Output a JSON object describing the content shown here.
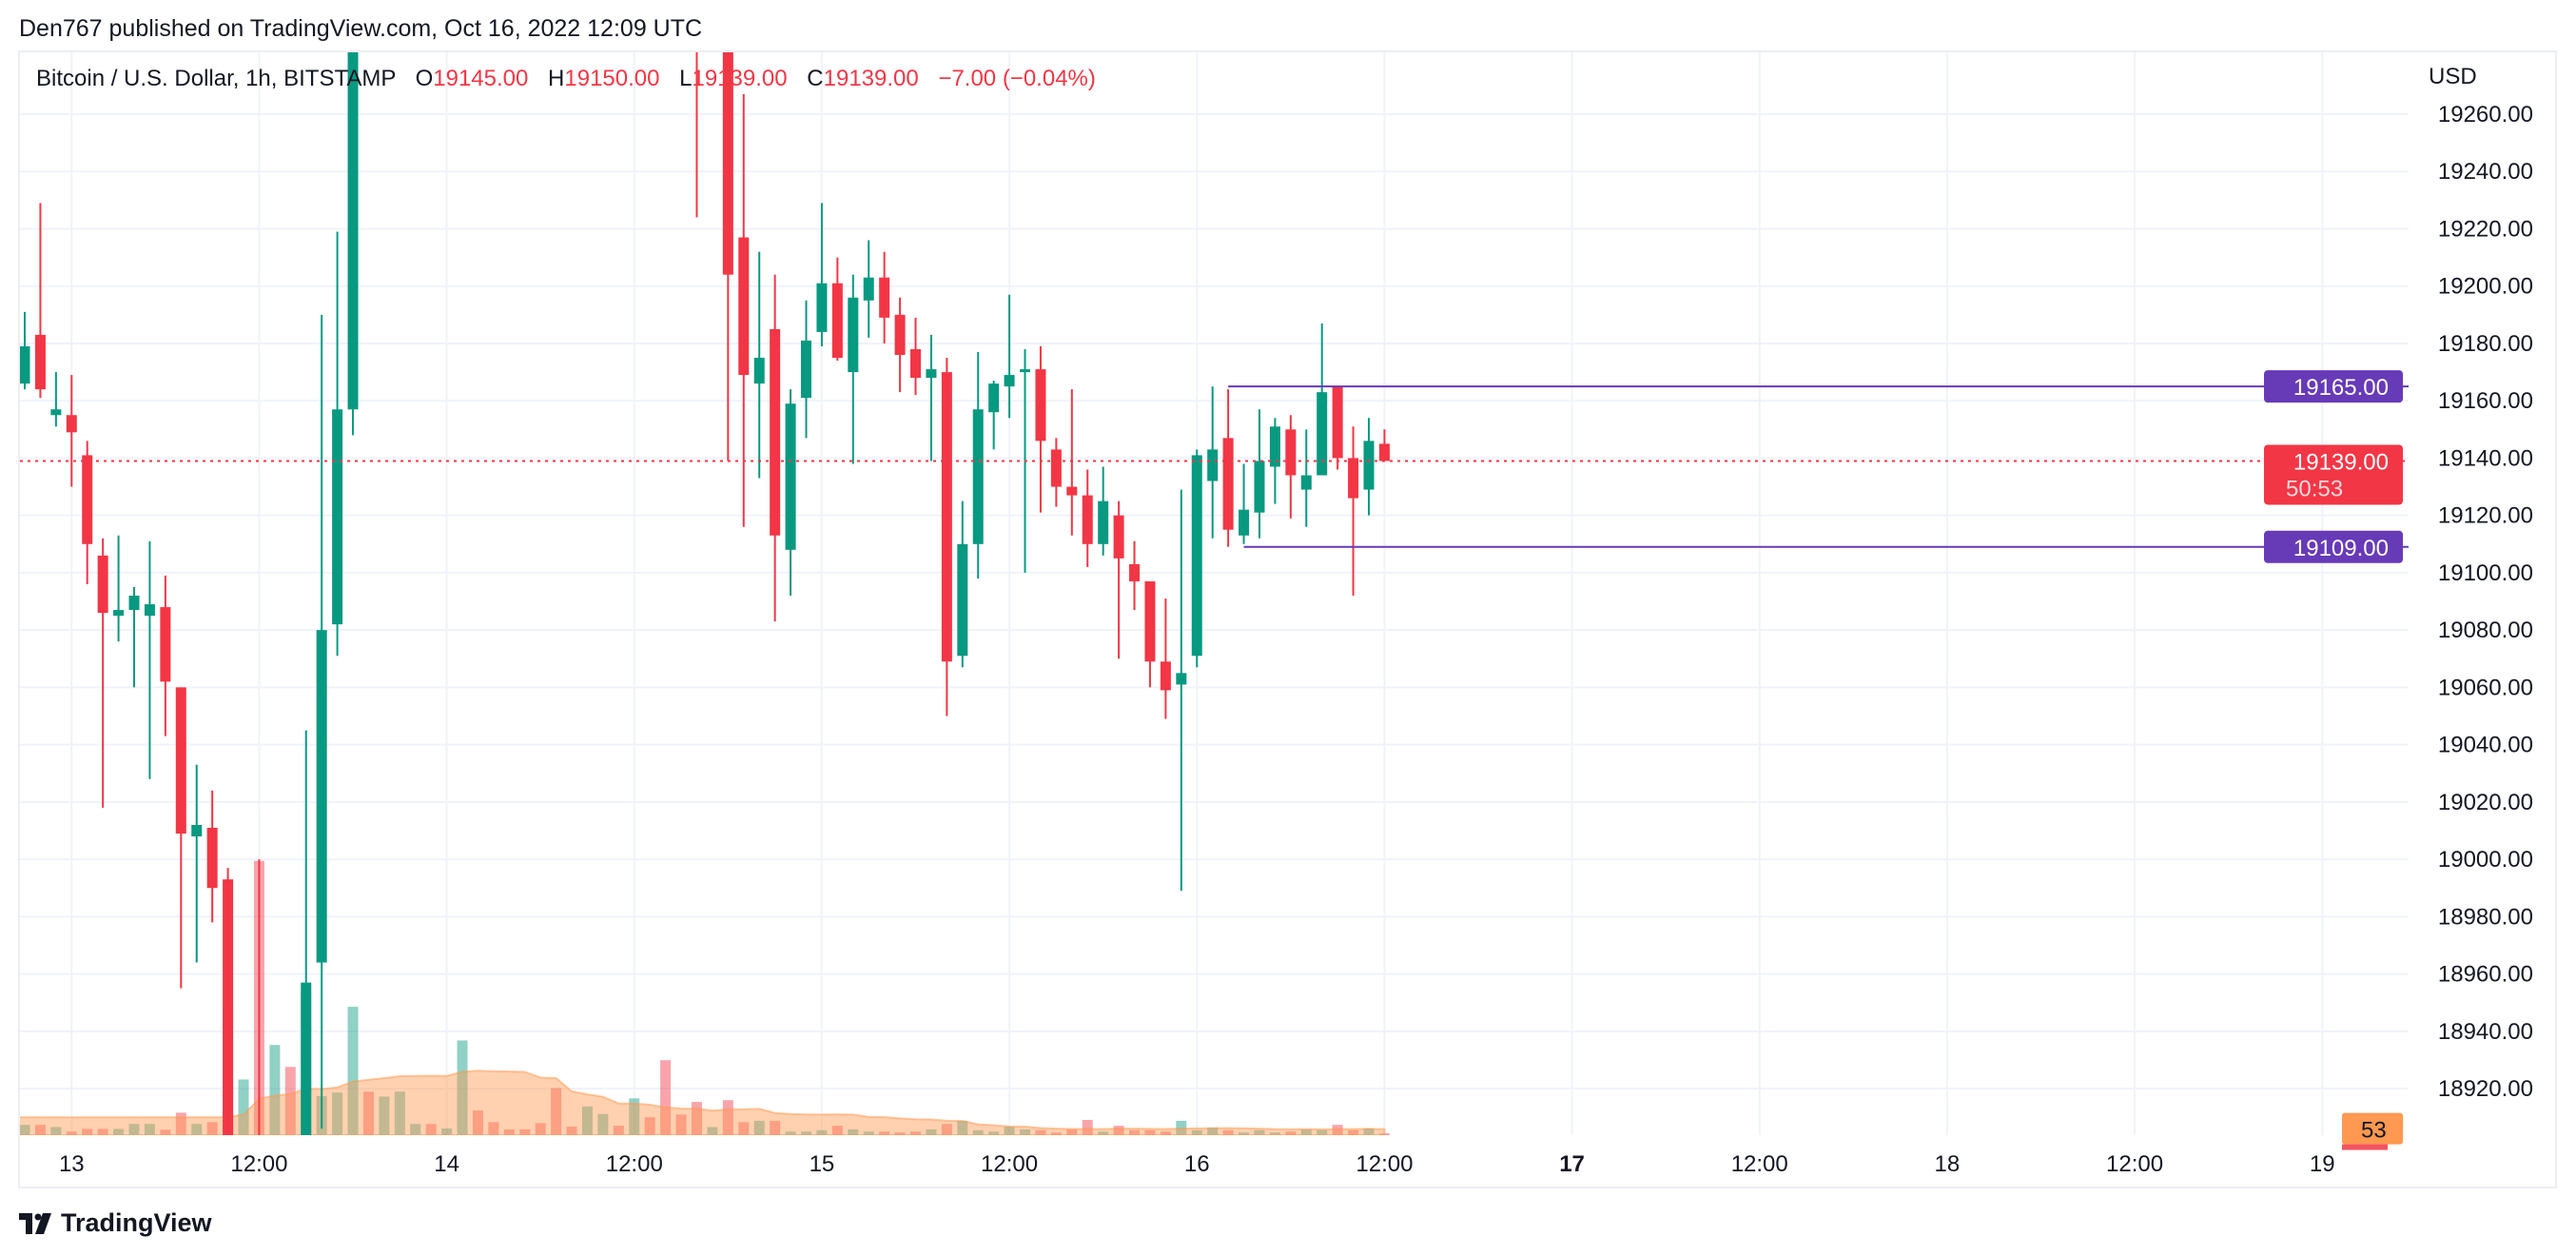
{
  "header": {
    "published": "Den767 published on TradingView.com, Oct 16, 2022 12:09 UTC"
  },
  "legend": {
    "symbol": "Bitcoin / U.S. Dollar, 1h, BITSTAMP",
    "o_label": "O",
    "o_value": "19145.00",
    "h_label": "H",
    "h_value": "19150.00",
    "l_label": "L",
    "l_value": "19139.00",
    "c_label": "C",
    "c_value": "19139.00",
    "change": "−7.00 (−0.04%)"
  },
  "price_axis": {
    "currency": "USD",
    "ticks": [
      "19260.00",
      "19240.00",
      "19220.00",
      "19200.00",
      "19180.00",
      "19160.00",
      "19140.00",
      "19120.00",
      "19100.00",
      "19080.00",
      "19060.00",
      "19040.00",
      "19020.00",
      "19000.00",
      "18980.00",
      "18960.00",
      "18940.00",
      "18920.00"
    ],
    "current_price": "19139.00",
    "countdown": "50:53",
    "volume_ma_label": "53",
    "levels": [
      "19165.00",
      "19109.00"
    ]
  },
  "time_axis": {
    "labels": [
      {
        "text": "13",
        "bold": false
      },
      {
        "text": "12:00",
        "bold": false
      },
      {
        "text": "14",
        "bold": false
      },
      {
        "text": "12:00",
        "bold": false
      },
      {
        "text": "15",
        "bold": false
      },
      {
        "text": "12:00",
        "bold": false
      },
      {
        "text": "16",
        "bold": false
      },
      {
        "text": "12:00",
        "bold": false
      },
      {
        "text": "17",
        "bold": true
      },
      {
        "text": "12:00",
        "bold": false
      },
      {
        "text": "18",
        "bold": false
      },
      {
        "text": "12:00",
        "bold": false
      },
      {
        "text": "19",
        "bold": false
      }
    ]
  },
  "footer": {
    "brand": "TradingView"
  },
  "colors": {
    "up": "#089981",
    "down": "#f23645",
    "level_line": "#673ab7",
    "volume_ma": "#ff9850",
    "grid": "#f0f3fa"
  },
  "chart_data": {
    "type": "candlestick",
    "title": "Bitcoin / U.S. Dollar, 1h, BITSTAMP",
    "ylabel": "USD",
    "ylim": [
      18904,
      19282
    ],
    "grid": true,
    "horizontal_levels": [
      {
        "price": 19165,
        "from": "2022-10-16 02:00"
      },
      {
        "price": 19109,
        "from": "2022-10-16 03:00"
      }
    ],
    "last_price_line": 19139,
    "columns": [
      "time",
      "open",
      "high",
      "low",
      "close",
      "volume",
      "direction"
    ],
    "candles": [
      [
        "2022-10-12 21:00",
        19166,
        19191,
        19164,
        19179,
        23,
        "up"
      ],
      [
        "2022-10-12 22:00",
        19183,
        19229,
        19161,
        19164,
        23,
        "down"
      ],
      [
        "2022-10-12 23:00",
        19155,
        19170,
        19151,
        19157,
        18,
        "up"
      ],
      [
        "2022-10-13 00:00",
        19155,
        19169,
        19130,
        19149,
        8,
        "down"
      ],
      [
        "2022-10-13 01:00",
        19141,
        19146,
        19096,
        19110,
        14,
        "down"
      ],
      [
        "2022-10-13 02:00",
        19106,
        19112,
        19018,
        19086,
        14,
        "down"
      ],
      [
        "2022-10-13 03:00",
        19085,
        19113,
        19076,
        19087,
        14,
        "up"
      ],
      [
        "2022-10-13 04:00",
        19087,
        19095,
        19060,
        19092,
        25,
        "up"
      ],
      [
        "2022-10-13 05:00",
        19085,
        19111,
        19028,
        19089,
        25,
        "up"
      ],
      [
        "2022-10-13 06:00",
        19088,
        19099,
        19043,
        19062,
        12,
        "down"
      ],
      [
        "2022-10-13 07:00",
        19060,
        19060,
        18955,
        19009,
        50,
        "down"
      ],
      [
        "2022-10-13 08:00",
        19008,
        19033,
        18964,
        19012,
        25,
        "up"
      ],
      [
        "2022-10-13 09:00",
        19011,
        19024,
        18978,
        18990,
        29,
        "down"
      ],
      [
        "2022-10-13 10:00",
        18993,
        18997,
        18860,
        18880,
        283,
        "down"
      ],
      [
        "2022-10-13 11:00",
        null,
        null,
        null,
        null,
        124,
        "up"
      ],
      [
        "2022-10-13 12:00",
        18890,
        19000,
        18850,
        18860,
        611,
        "down"
      ],
      [
        "2022-10-13 13:00",
        null,
        null,
        null,
        null,
        201,
        "up"
      ],
      [
        "2022-10-13 14:00",
        null,
        null,
        null,
        null,
        152,
        "down"
      ],
      [
        "2022-10-13 15:00",
        18870,
        19045,
        18860,
        18957,
        316,
        "up"
      ],
      [
        "2022-10-13 16:00",
        18964,
        19190,
        18906,
        19080,
        87,
        "up"
      ],
      [
        "2022-10-13 17:00",
        19082,
        19219,
        19071,
        19157,
        95,
        "up"
      ],
      [
        "2022-10-13 18:00",
        19157,
        19310,
        19148,
        19300,
        286,
        "up"
      ],
      [
        "2022-10-13 19:00",
        null,
        null,
        null,
        null,
        97,
        "down"
      ],
      [
        "2022-10-13 20:00",
        null,
        null,
        null,
        null,
        86,
        "up"
      ],
      [
        "2022-10-13 21:00",
        null,
        null,
        null,
        null,
        97,
        "up"
      ],
      [
        "2022-10-13 22:00",
        null,
        null,
        null,
        null,
        25,
        "up"
      ],
      [
        "2022-10-13 23:00",
        null,
        null,
        null,
        null,
        25,
        "down"
      ],
      [
        "2022-10-14 00:00",
        null,
        null,
        null,
        null,
        15,
        "up"
      ],
      [
        "2022-10-14 01:00",
        null,
        null,
        null,
        null,
        211,
        "up"
      ],
      [
        "2022-10-14 02:00",
        null,
        null,
        null,
        null,
        55,
        "down"
      ],
      [
        "2022-10-14 03:00",
        null,
        null,
        null,
        null,
        29,
        "down"
      ],
      [
        "2022-10-14 04:00",
        null,
        null,
        null,
        null,
        13,
        "down"
      ],
      [
        "2022-10-14 05:00",
        null,
        null,
        null,
        null,
        13,
        "down"
      ],
      [
        "2022-10-14 06:00",
        null,
        null,
        null,
        null,
        27,
        "down"
      ],
      [
        "2022-10-14 07:00",
        null,
        null,
        null,
        null,
        105,
        "down"
      ],
      [
        "2022-10-14 08:00",
        null,
        null,
        null,
        null,
        19,
        "down"
      ],
      [
        "2022-10-14 09:00",
        null,
        null,
        null,
        null,
        64,
        "up"
      ],
      [
        "2022-10-14 10:00",
        null,
        null,
        null,
        null,
        47,
        "up"
      ],
      [
        "2022-10-14 11:00",
        null,
        null,
        null,
        null,
        21,
        "down"
      ],
      [
        "2022-10-14 12:00",
        null,
        null,
        null,
        null,
        82,
        "up"
      ],
      [
        "2022-10-14 13:00",
        null,
        null,
        null,
        null,
        40,
        "down"
      ],
      [
        "2022-10-14 14:00",
        null,
        null,
        null,
        null,
        167,
        "down"
      ],
      [
        "2022-10-14 15:00",
        null,
        null,
        null,
        null,
        46,
        "down"
      ],
      [
        "2022-10-14 16:00",
        19330,
        19350,
        19224,
        19300,
        74,
        "down"
      ],
      [
        "2022-10-14 17:00",
        null,
        null,
        null,
        null,
        18,
        "up"
      ],
      [
        "2022-10-14 18:00",
        19290,
        19300,
        19139,
        19204,
        78,
        "down"
      ],
      [
        "2022-10-14 19:00",
        19217,
        19267,
        19116,
        19169,
        29,
        "down"
      ],
      [
        "2022-10-14 20:00",
        19166,
        19212,
        19133,
        19175,
        32,
        "up"
      ],
      [
        "2022-10-14 21:00",
        19185,
        19204,
        19083,
        19113,
        32,
        "down"
      ],
      [
        "2022-10-14 22:00",
        19108,
        19164,
        19092,
        19159,
        8,
        "up"
      ],
      [
        "2022-10-14 23:00",
        19161,
        19195,
        19147,
        19181,
        8,
        "up"
      ],
      [
        "2022-10-15 00:00",
        19184,
        19229,
        19179,
        19201,
        11,
        "up"
      ],
      [
        "2022-10-15 01:00",
        19201,
        19210,
        19174,
        19175,
        21,
        "down"
      ],
      [
        "2022-10-15 02:00",
        19170,
        19204,
        19138,
        19196,
        13,
        "up"
      ],
      [
        "2022-10-15 03:00",
        19195,
        19216,
        19182,
        19203,
        8,
        "up"
      ],
      [
        "2022-10-15 04:00",
        19203,
        19212,
        19180,
        19189,
        8,
        "down"
      ],
      [
        "2022-10-15 05:00",
        19190,
        19196,
        19163,
        19176,
        6,
        "down"
      ],
      [
        "2022-10-15 06:00",
        19178,
        19189,
        19162,
        19168,
        8,
        "down"
      ],
      [
        "2022-10-15 07:00",
        19168,
        19183,
        19139,
        19171,
        13,
        "up"
      ],
      [
        "2022-10-15 08:00",
        19170,
        19175,
        19050,
        19069,
        25,
        "down"
      ],
      [
        "2022-10-15 09:00",
        19071,
        19125,
        19067,
        19110,
        32,
        "up"
      ],
      [
        "2022-10-15 10:00",
        19110,
        19177,
        19098,
        19157,
        11,
        "up"
      ],
      [
        "2022-10-15 11:00",
        19156,
        19167,
        19143,
        19166,
        8,
        "up"
      ],
      [
        "2022-10-15 12:00",
        19165,
        19197,
        19154,
        19169,
        19,
        "up"
      ],
      [
        "2022-10-15 13:00",
        19170,
        19178,
        19100,
        19171,
        13,
        "up"
      ],
      [
        "2022-10-15 14:00",
        19171,
        19179,
        19121,
        19146,
        11,
        "down"
      ],
      [
        "2022-10-15 15:00",
        19143,
        19147,
        19123,
        19130,
        6,
        "down"
      ],
      [
        "2022-10-15 16:00",
        19130,
        19164,
        19113,
        19127,
        13,
        "down"
      ],
      [
        "2022-10-15 17:00",
        19127,
        19136,
        19102,
        19110,
        34,
        "down"
      ],
      [
        "2022-10-15 18:00",
        19110,
        19137,
        19106,
        19125,
        8,
        "up"
      ],
      [
        "2022-10-15 19:00",
        19120,
        19125,
        19070,
        19105,
        21,
        "down"
      ],
      [
        "2022-10-15 20:00",
        19103,
        19111,
        19087,
        19097,
        11,
        "down"
      ],
      [
        "2022-10-15 21:00",
        19097,
        19097,
        19060,
        19069,
        11,
        "down"
      ],
      [
        "2022-10-15 22:00",
        19069,
        19091,
        19049,
        19059,
        8,
        "down"
      ],
      [
        "2022-10-15 23:00",
        19061,
        19129,
        18989,
        19065,
        32,
        "up"
      ],
      [
        "2022-10-16 00:00",
        19071,
        19143,
        19067,
        19141,
        11,
        "up"
      ],
      [
        "2022-10-16 01:00",
        19132,
        19165,
        19112,
        19143,
        17,
        "up"
      ],
      [
        "2022-10-16 02:00",
        19147,
        19164,
        19109,
        19115,
        11,
        "down"
      ],
      [
        "2022-10-16 03:00",
        19113,
        19138,
        19110,
        19122,
        6,
        "up"
      ],
      [
        "2022-10-16 04:00",
        19121,
        19157,
        19112,
        19139,
        11,
        "up"
      ],
      [
        "2022-10-16 05:00",
        19137,
        19154,
        19124,
        19151,
        6,
        "up"
      ],
      [
        "2022-10-16 06:00",
        19150,
        19155,
        19119,
        19134,
        8,
        "down"
      ],
      [
        "2022-10-16 07:00",
        19129,
        19150,
        19116,
        19134,
        13,
        "up"
      ],
      [
        "2022-10-16 08:00",
        19134,
        19187,
        19134,
        19163,
        11,
        "up"
      ],
      [
        "2022-10-16 09:00",
        19165,
        19165,
        19136,
        19140,
        23,
        "down"
      ],
      [
        "2022-10-16 10:00",
        19140,
        19151,
        19092,
        19126,
        11,
        "down"
      ],
      [
        "2022-10-16 11:00",
        19129,
        19154,
        19120,
        19146,
        15,
        "up"
      ],
      [
        "2022-10-16 12:00",
        19145,
        19150,
        19139,
        19139,
        4,
        "down"
      ]
    ],
    "volume_ma_last": 53
  }
}
